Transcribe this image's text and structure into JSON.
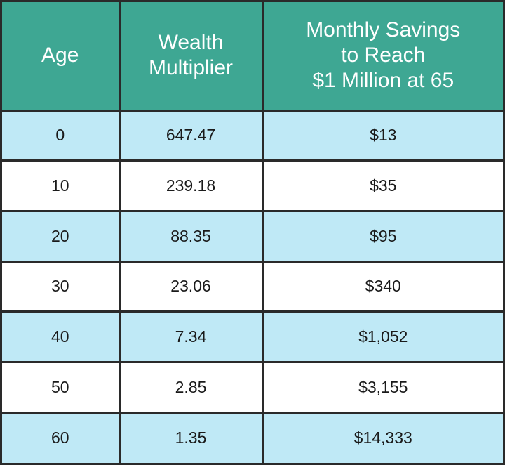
{
  "table": {
    "header": [
      [
        "Age"
      ],
      [
        "Wealth",
        "Multiplier"
      ],
      [
        "Monthly Savings",
        "to Reach",
        "$1 Million at 65"
      ]
    ],
    "rows": [
      [
        "0",
        "647.47",
        "$13"
      ],
      [
        "10",
        "239.18",
        "$35"
      ],
      [
        "20",
        "88.35",
        "$95"
      ],
      [
        "30",
        "23.06",
        "$340"
      ],
      [
        "40",
        "7.34",
        "$1,052"
      ],
      [
        "50",
        "2.85",
        "$3,155"
      ],
      [
        "60",
        "1.35",
        "$14,333"
      ]
    ]
  }
}
